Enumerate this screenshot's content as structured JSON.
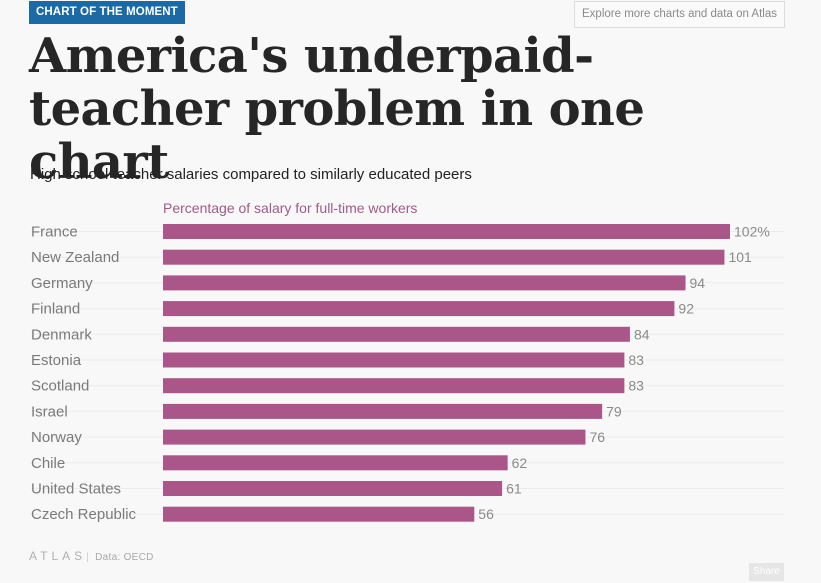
{
  "header": {
    "badge": "CHART OF THE MOMENT",
    "explore_link": "Explore more charts and data on Atlas"
  },
  "title": "America's underpaid-teacher problem in one chart",
  "subtitle": "High school teacher salaries compared to similarly educated peers",
  "footer": {
    "logo": "ATLAS",
    "source": "Data: OECD",
    "share_label": "Share"
  },
  "colors": {
    "bar": "#ab5689",
    "badge": "#1b6aa5"
  },
  "chart_data": {
    "type": "bar",
    "orientation": "horizontal",
    "title": "High school teacher salaries compared to similarly educated peers",
    "xlabel": "Percentage of salary for full-time workers",
    "ylabel": "",
    "categories": [
      "France",
      "New Zealand",
      "Germany",
      "Finland",
      "Denmark",
      "Estonia",
      "Scotland",
      "Israel",
      "Norway",
      "Chile",
      "United States",
      "Czech Republic"
    ],
    "values": [
      102,
      101,
      94,
      92,
      84,
      83,
      83,
      79,
      76,
      62,
      61,
      56
    ],
    "value_labels": [
      "102%",
      "101",
      "94",
      "92",
      "84",
      "83",
      "83",
      "79",
      "76",
      "62",
      "61",
      "56"
    ],
    "xlim": [
      0,
      102
    ],
    "grid": true,
    "legend": "none"
  }
}
